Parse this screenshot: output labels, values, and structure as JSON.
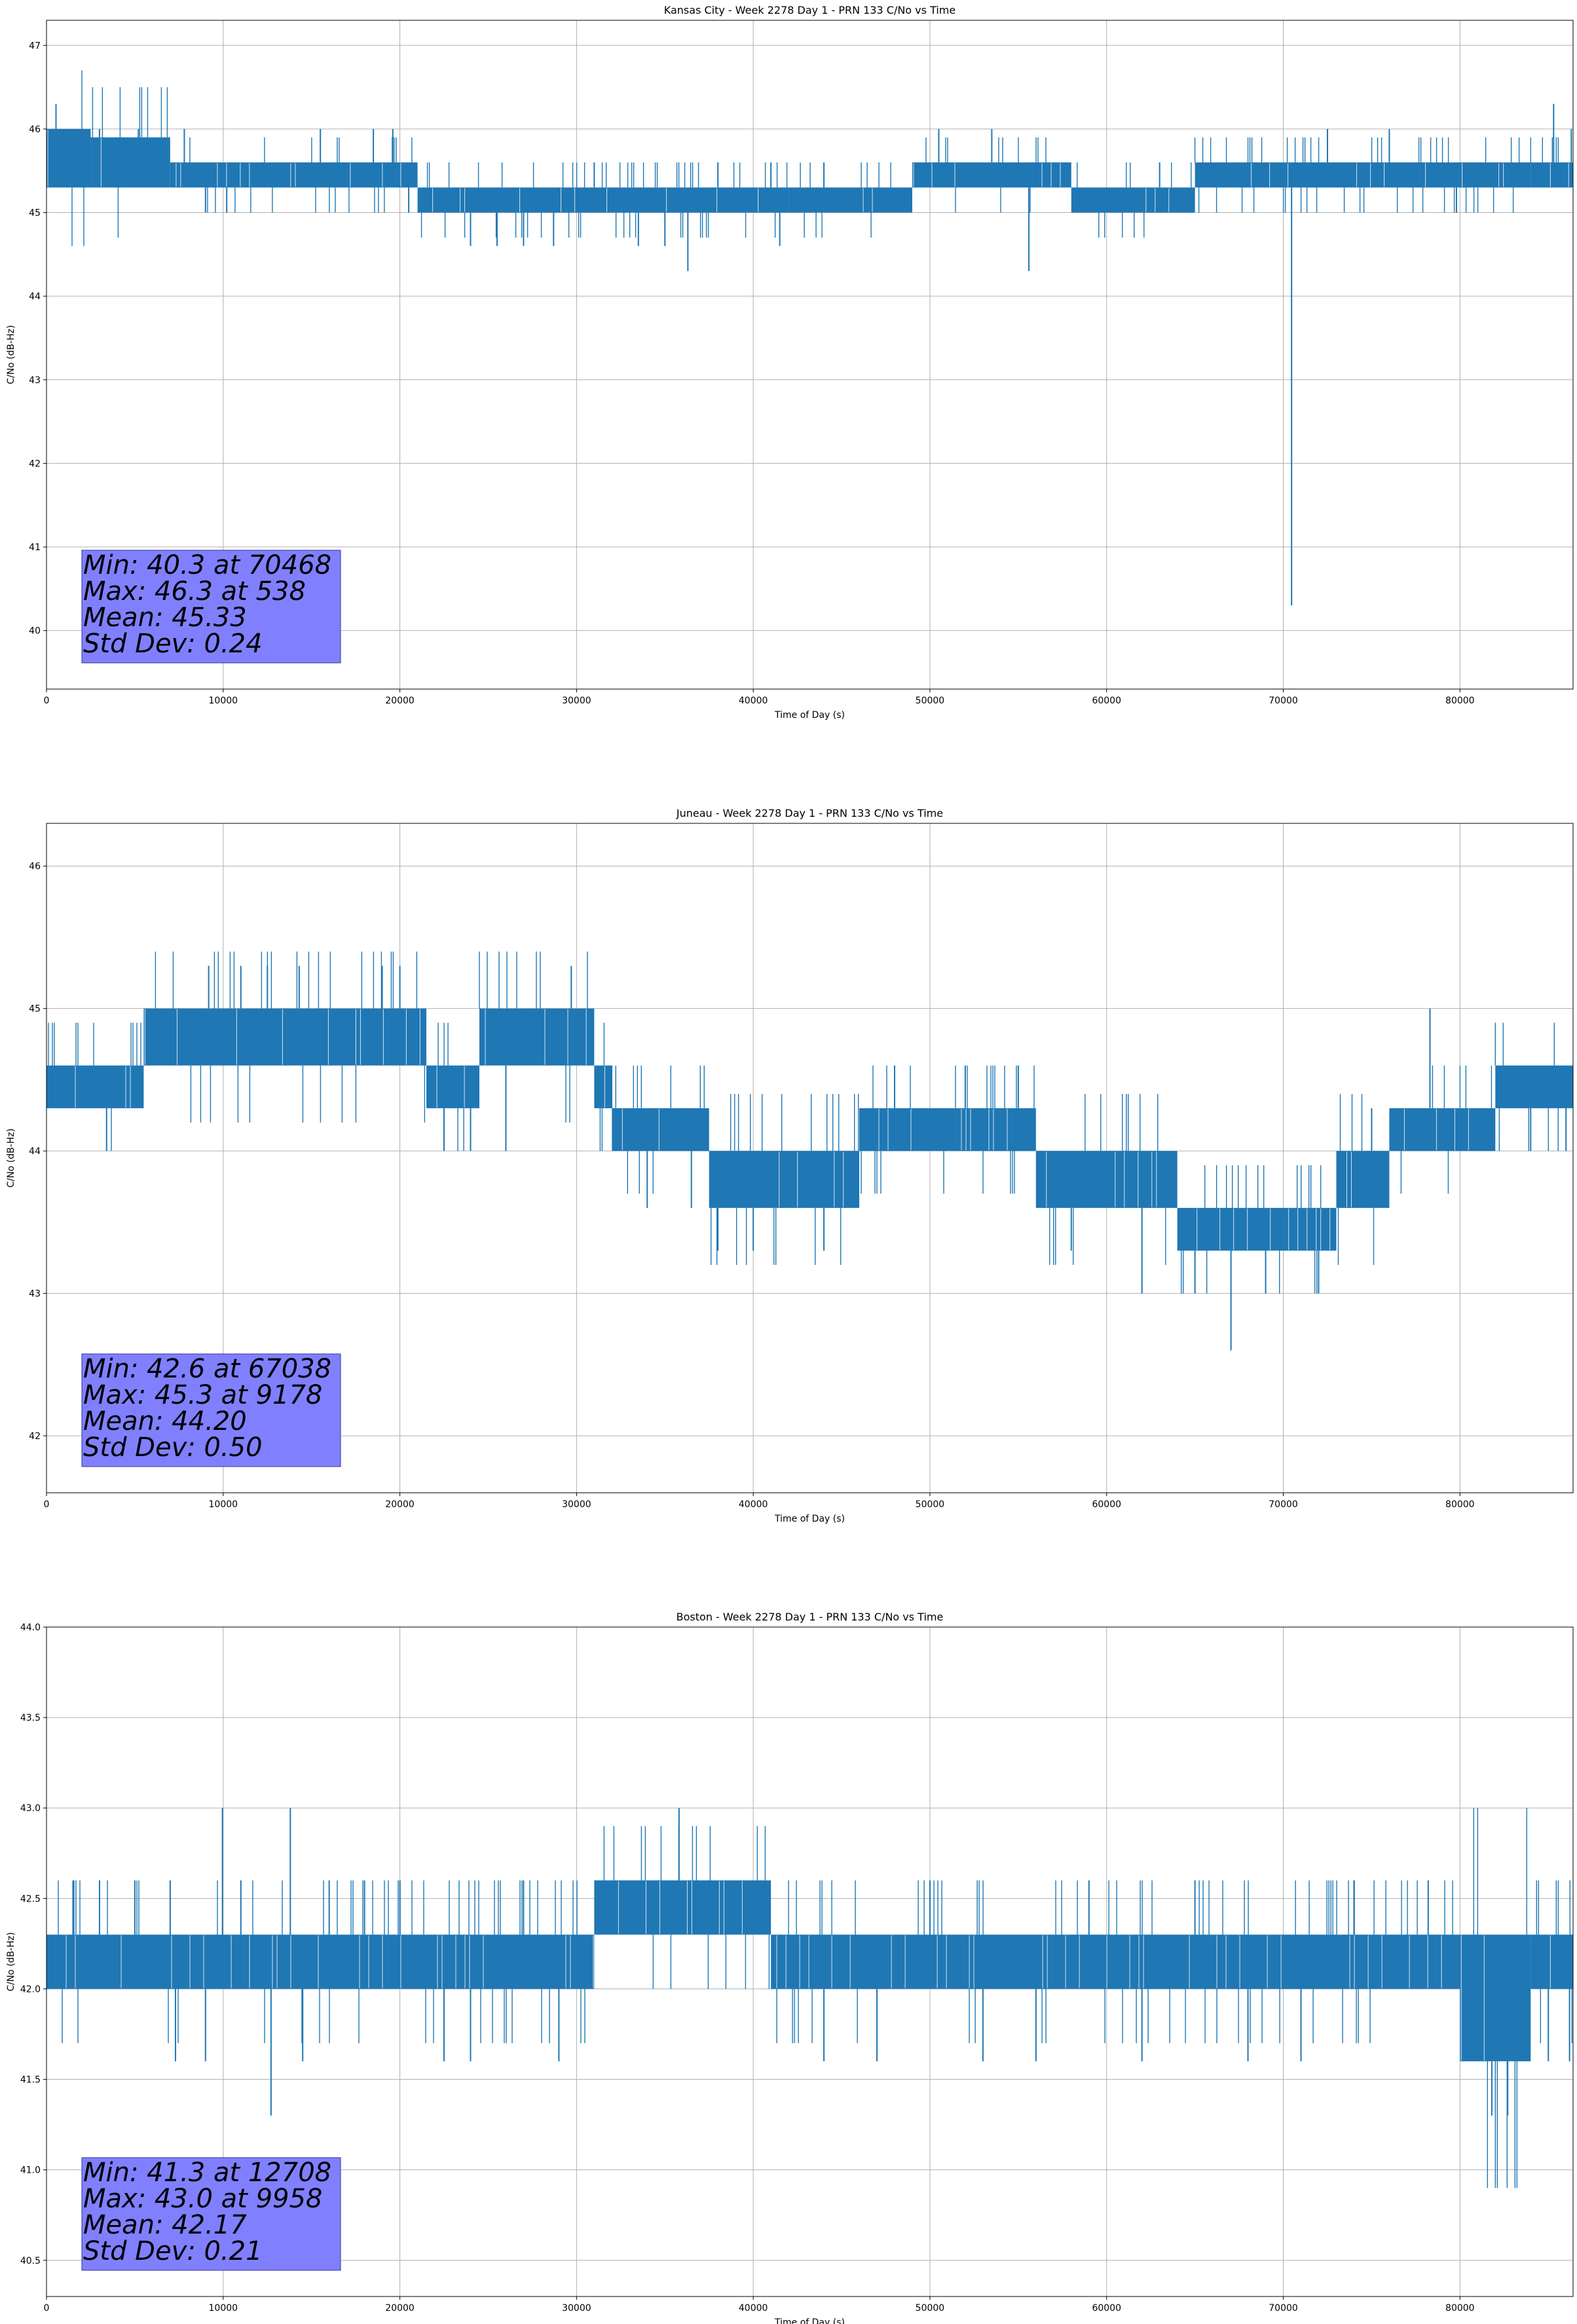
{
  "chart_data": [
    {
      "type": "line",
      "title": "Kansas City - Week 2278 Day 1 - PRN 133 C/No vs Time",
      "xlabel": "Time of Day (s)",
      "ylabel": "C/No (dB-Hz)",
      "xlim": [
        0,
        86400
      ],
      "ylim": [
        39.3,
        47.3
      ],
      "xticks": [
        0,
        10000,
        20000,
        30000,
        40000,
        50000,
        60000,
        70000,
        80000
      ],
      "yticks": [
        "40",
        "41",
        "42",
        "43",
        "44",
        "45",
        "46",
        "47"
      ],
      "grid": true,
      "line_color": "#1f77b4",
      "series": [
        {
          "band_segments": [
            [
              0,
              2500,
              45.3,
              46.0
            ],
            [
              2500,
              7000,
              45.3,
              45.9
            ],
            [
              7000,
              21000,
              45.3,
              45.6
            ],
            [
              21000,
              42000,
              45.0,
              45.3
            ],
            [
              42000,
              49000,
              45.0,
              45.3
            ],
            [
              49000,
              58000,
              45.3,
              45.6
            ],
            [
              58000,
              65000,
              45.0,
              45.3
            ],
            [
              65000,
              84000,
              45.3,
              45.6
            ],
            [
              84000,
              86400,
              45.3,
              45.6
            ]
          ],
          "spikes": [
            [
              538,
              46.3
            ],
            [
              1200,
              46.0
            ],
            [
              3000,
              46.0
            ],
            [
              5200,
              46.0
            ],
            [
              7800,
              46.0
            ],
            [
              9000,
              45.0
            ],
            [
              10200,
              45.0
            ],
            [
              15500,
              46.0
            ],
            [
              18500,
              46.0
            ],
            [
              19600,
              46.0
            ],
            [
              20500,
              45.0
            ],
            [
              24000,
              44.6
            ],
            [
              25500,
              44.6
            ],
            [
              27000,
              44.6
            ],
            [
              28700,
              44.6
            ],
            [
              31000,
              45.6
            ],
            [
              33500,
              44.6
            ],
            [
              35000,
              44.6
            ],
            [
              36300,
              44.3
            ],
            [
              38000,
              45.6
            ],
            [
              41000,
              45.6
            ],
            [
              41500,
              44.6
            ],
            [
              44000,
              45.6
            ],
            [
              47000,
              45.3
            ],
            [
              50500,
              46.0
            ],
            [
              53500,
              46.0
            ],
            [
              55600,
              44.3
            ],
            [
              56000,
              45.6
            ],
            [
              59000,
              45.0
            ],
            [
              63000,
              45.6
            ],
            [
              64000,
              45.0
            ],
            [
              66000,
              45.6
            ],
            [
              70468,
              40.3
            ],
            [
              72500,
              46.0
            ],
            [
              76000,
              46.0
            ],
            [
              79800,
              45.0
            ],
            [
              85300,
              46.3
            ],
            [
              86300,
              46.0
            ]
          ]
        }
      ],
      "stats": [
        "Min: 40.3 at 70468",
        "Max: 46.3 at 538",
        "Mean: 45.33",
        "Std Dev: 0.24"
      ],
      "stats_box_color": "#8080ff"
    },
    {
      "type": "line",
      "title": "Juneau - Week 2278 Day 1 - PRN 133 C/No vs Time",
      "xlabel": "Time of Day (s)",
      "ylabel": "C/No (dB-Hz)",
      "xlim": [
        0,
        86400
      ],
      "ylim": [
        41.6,
        46.3
      ],
      "xticks": [
        0,
        10000,
        20000,
        30000,
        40000,
        50000,
        60000,
        70000,
        80000
      ],
      "yticks": [
        "42",
        "43",
        "44",
        "45",
        "46"
      ],
      "grid": true,
      "line_color": "#1f77b4",
      "series": [
        {
          "band_segments": [
            [
              0,
              5500,
              44.3,
              44.6
            ],
            [
              5500,
              21500,
              44.6,
              45.0
            ],
            [
              21500,
              24500,
              44.3,
              44.6
            ],
            [
              24500,
              31000,
              44.6,
              45.0
            ],
            [
              31000,
              32000,
              44.3,
              44.6
            ],
            [
              32000,
              37500,
              44.0,
              44.3
            ],
            [
              37500,
              46000,
              43.6,
              44.0
            ],
            [
              46000,
              56000,
              44.0,
              44.3
            ],
            [
              56000,
              64000,
              43.6,
              44.0
            ],
            [
              64000,
              73000,
              43.3,
              43.6
            ],
            [
              73000,
              76000,
              43.6,
              44.0
            ],
            [
              76000,
              82000,
              44.0,
              44.3
            ],
            [
              82000,
              86400,
              44.3,
              44.6
            ]
          ],
          "spikes": [
            [
              3400,
              44.0
            ],
            [
              9178,
              45.3
            ],
            [
              11000,
              45.3
            ],
            [
              12500,
              45.3
            ],
            [
              14300,
              45.3
            ],
            [
              19000,
              45.3
            ],
            [
              20000,
              45.3
            ],
            [
              22500,
              44.0
            ],
            [
              24000,
              44.0
            ],
            [
              26000,
              44.0
            ],
            [
              29700,
              45.3
            ],
            [
              34000,
              43.6
            ],
            [
              36500,
              43.6
            ],
            [
              38000,
              43.3
            ],
            [
              40000,
              43.3
            ],
            [
              44000,
              43.3
            ],
            [
              48000,
              44.6
            ],
            [
              52000,
              44.6
            ],
            [
              55000,
              44.6
            ],
            [
              58000,
              43.3
            ],
            [
              62000,
              43.0
            ],
            [
              65000,
              43.0
            ],
            [
              67038,
              42.6
            ],
            [
              69000,
              43.0
            ],
            [
              72000,
              43.0
            ],
            [
              75000,
              44.3
            ],
            [
              78300,
              45.0
            ],
            [
              80000,
              44.0
            ],
            [
              84000,
              44.0
            ],
            [
              86000,
              44.0
            ]
          ]
        }
      ],
      "stats": [
        "Min: 42.6 at 67038",
        "Max: 45.3 at 9178",
        "Mean: 44.20",
        "Std Dev: 0.50"
      ],
      "stats_box_color": "#8080ff"
    },
    {
      "type": "line",
      "title": "Boston - Week 2278 Day 1 - PRN 133 C/No vs Time",
      "xlabel": "Time of Day (s)",
      "ylabel": "C/No (dB-Hz)",
      "xlim": [
        0,
        86400
      ],
      "ylim": [
        40.3,
        44.0
      ],
      "xticks": [
        0,
        10000,
        20000,
        30000,
        40000,
        50000,
        60000,
        70000,
        80000
      ],
      "yticks": [
        "40.5",
        "41.0",
        "41.5",
        "42.0",
        "42.5",
        "43.0",
        "43.5",
        "44.0"
      ],
      "grid": true,
      "line_color": "#1f77b4",
      "series": [
        {
          "band_segments": [
            [
              0,
              31000,
              42.0,
              42.3
            ],
            [
              31000,
              41000,
              42.3,
              42.6
            ],
            [
              41000,
              80000,
              42.0,
              42.3
            ],
            [
              80000,
              84000,
              41.6,
              42.3
            ],
            [
              84000,
              86400,
              42.0,
              42.3
            ]
          ],
          "spikes": [
            [
              1500,
              42.6
            ],
            [
              3000,
              42.6
            ],
            [
              5000,
              42.6
            ],
            [
              7000,
              42.6
            ],
            [
              7300,
              41.6
            ],
            [
              9000,
              41.6
            ],
            [
              9958,
              43.0
            ],
            [
              11000,
              42.6
            ],
            [
              12708,
              41.3
            ],
            [
              13800,
              43.0
            ],
            [
              14500,
              41.6
            ],
            [
              16000,
              42.6
            ],
            [
              18000,
              42.6
            ],
            [
              20000,
              42.6
            ],
            [
              22500,
              41.6
            ],
            [
              24000,
              41.6
            ],
            [
              27000,
              42.6
            ],
            [
              29000,
              41.6
            ],
            [
              35800,
              43.0
            ],
            [
              37500,
              42.6
            ],
            [
              44000,
              41.6
            ],
            [
              47000,
              41.6
            ],
            [
              50000,
              42.6
            ],
            [
              53000,
              41.6
            ],
            [
              56000,
              41.6
            ],
            [
              59000,
              42.6
            ],
            [
              62000,
              41.6
            ],
            [
              65000,
              42.6
            ],
            [
              68000,
              41.6
            ],
            [
              71000,
              41.6
            ],
            [
              74000,
              42.6
            ],
            [
              78200,
              42.6
            ],
            [
              81800,
              41.3
            ],
            [
              82700,
              41.3
            ],
            [
              85000,
              41.6
            ],
            [
              86200,
              41.6
            ]
          ]
        }
      ],
      "stats": [
        "Min: 41.3 at 12708",
        "Max: 43.0 at 9958",
        "Mean: 42.17",
        "Std Dev: 0.21"
      ],
      "stats_box_color": "#8080ff"
    }
  ]
}
